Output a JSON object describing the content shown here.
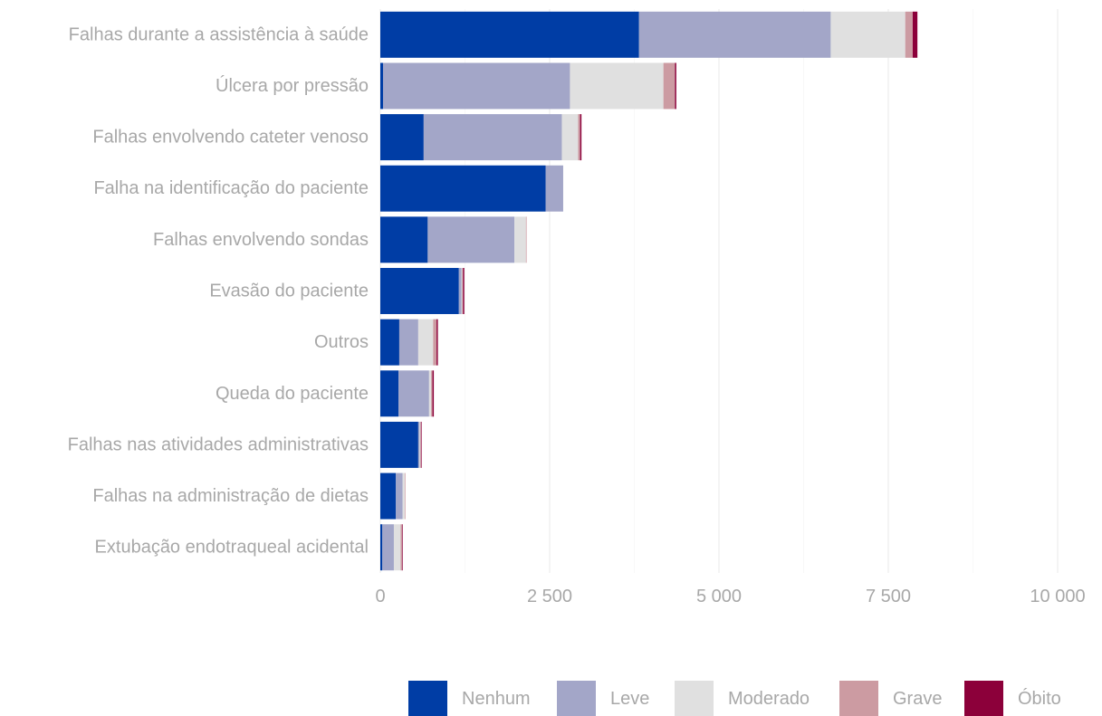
{
  "chart_data": {
    "type": "bar",
    "orientation": "horizontal",
    "stacked": true,
    "title": "",
    "xlabel": "",
    "ylabel": "",
    "xlim": [
      0,
      10000
    ],
    "x_ticks": [
      0,
      2500,
      5000,
      7500,
      10000
    ],
    "x_tick_labels": [
      "0",
      "2 500",
      "5 000",
      "7 500",
      "10 000"
    ],
    "grid": true,
    "legend_position": "bottom",
    "categories": [
      "Falhas durante a assistência à saúde",
      "Úlcera por pressão",
      "Falhas envolvendo cateter venoso",
      "Falha na identificação do paciente",
      "Falhas envolvendo sondas",
      "Evasão do paciente",
      "Outros",
      "Queda do paciente",
      "Falhas nas atividades administrativas",
      "Falhas na administração de dietas",
      "Extubação endotraqueal acidental"
    ],
    "series": [
      {
        "name": "Nenhum",
        "color": "#003da5",
        "values": [
          3820,
          40,
          640,
          2440,
          700,
          1160,
          280,
          270,
          560,
          230,
          30
        ]
      },
      {
        "name": "Leve",
        "color": "#a3a6c8",
        "values": [
          2830,
          2760,
          2040,
          260,
          1280,
          40,
          280,
          450,
          20,
          100,
          170
        ]
      },
      {
        "name": "Moderado",
        "color": "#e0e0e0",
        "values": [
          1100,
          1380,
          240,
          0,
          170,
          10,
          220,
          30,
          10,
          30,
          100
        ]
      },
      {
        "name": "Grave",
        "color": "#cc9ba2",
        "values": [
          110,
          170,
          30,
          0,
          10,
          10,
          50,
          20,
          10,
          10,
          20
        ]
      },
      {
        "name": "Óbito",
        "color": "#8c003a",
        "values": [
          70,
          20,
          20,
          0,
          0,
          20,
          20,
          20,
          10,
          0,
          10
        ]
      }
    ]
  }
}
